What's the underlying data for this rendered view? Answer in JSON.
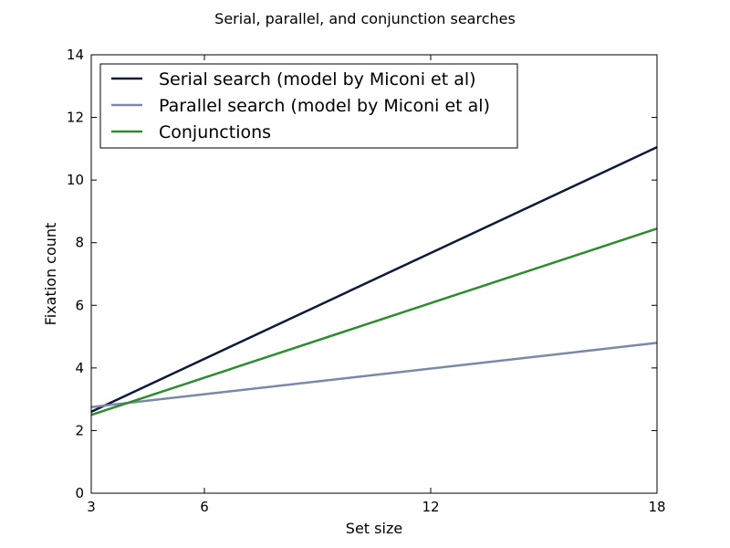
{
  "chart_data": {
    "type": "line",
    "title": "Serial, parallel, and conjunction searches",
    "xlabel": "Set size",
    "ylabel": "Fixation count",
    "xlim": [
      3,
      18
    ],
    "ylim": [
      0,
      14
    ],
    "xticks": [
      3,
      6,
      12,
      18
    ],
    "yticks": [
      0,
      2,
      4,
      6,
      8,
      10,
      12,
      14
    ],
    "grid": false,
    "legend_position": "top-left",
    "series": [
      {
        "name": "Serial search (model by Miconi et al)",
        "color": "#0b1a3a",
        "x": [
          3,
          18
        ],
        "y": [
          2.6,
          11.05
        ]
      },
      {
        "name": "Parallel search (model by Miconi et al)",
        "color": "#7a89aa",
        "x": [
          3,
          18
        ],
        "y": [
          2.75,
          4.8
        ]
      },
      {
        "name": "Conjunctions",
        "color": "#2e8b2e",
        "x": [
          3,
          18
        ],
        "y": [
          2.5,
          8.45
        ]
      }
    ]
  }
}
